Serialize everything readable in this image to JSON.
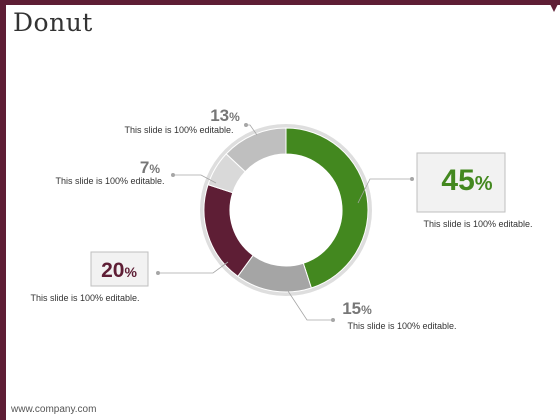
{
  "slide": {
    "title": "Donut",
    "footer": "www.company.com"
  },
  "chart_data": {
    "type": "pie",
    "donut": true,
    "slices": [
      {
        "value": 45,
        "label": "45",
        "suffix": "%",
        "caption": "This slide is 100% editable.",
        "color": "#43881f",
        "label_color": "#43881f"
      },
      {
        "value": 15,
        "label": "15",
        "suffix": "%",
        "caption": "This slide is 100% editable.",
        "color": "#a5a5a5",
        "label_color": "#777777"
      },
      {
        "value": 20,
        "label": "20",
        "suffix": "%",
        "caption": "This slide is 100% editable.",
        "color": "#5e1e35",
        "label_color": "#5e1e35"
      },
      {
        "value": 7,
        "label": "7",
        "suffix": "%",
        "caption": "This slide is 100% editable.",
        "color": "#d9d9d9",
        "label_color": "#777777"
      },
      {
        "value": 13,
        "label": "13",
        "suffix": "%",
        "caption": "This slide is 100% editable.",
        "color": "#bfbfbf",
        "label_color": "#777777"
      }
    ]
  }
}
